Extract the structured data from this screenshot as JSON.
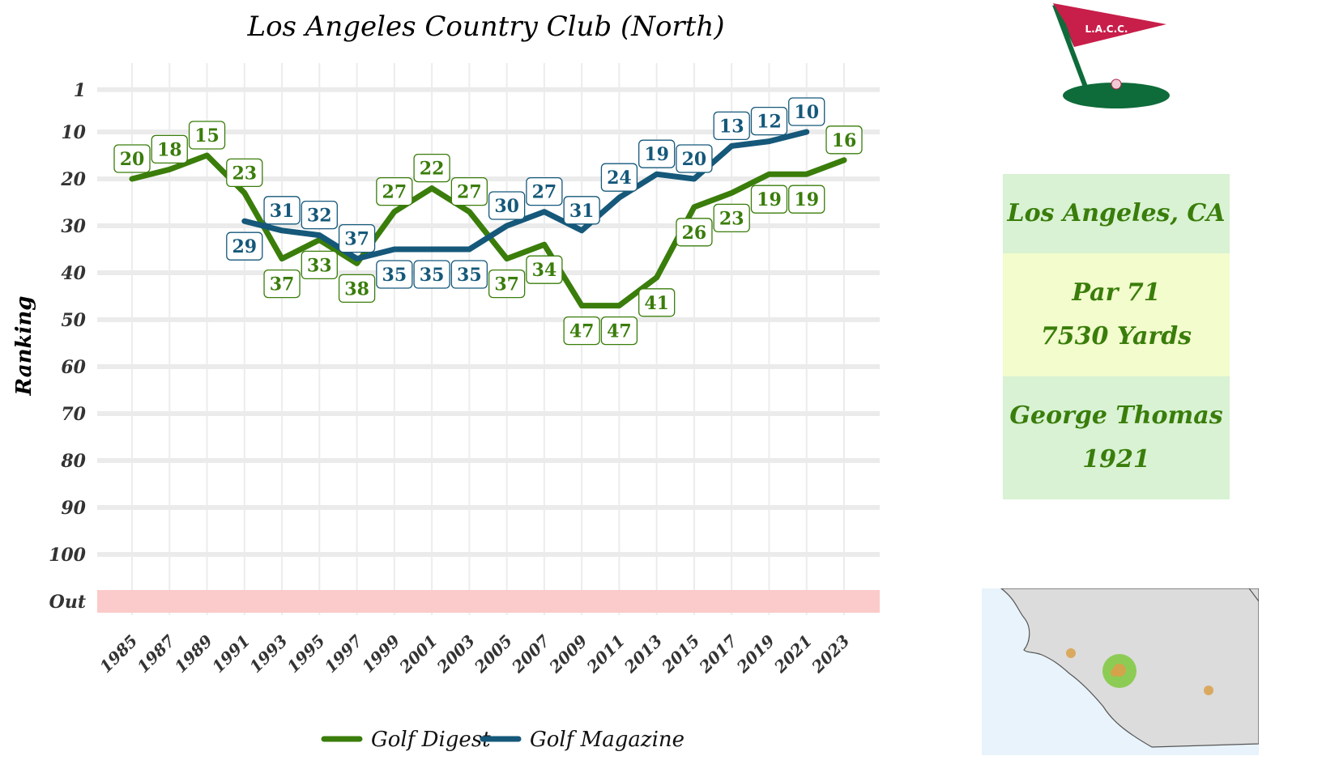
{
  "chart_data": {
    "type": "line",
    "title": "Los Angeles Country Club (North)",
    "xlabel": "",
    "ylabel": "Ranking",
    "x": [
      1985,
      1987,
      1989,
      1991,
      1993,
      1995,
      1997,
      1999,
      2001,
      2003,
      2005,
      2007,
      2009,
      2011,
      2013,
      2015,
      2017,
      2019,
      2021,
      2023
    ],
    "x_tick_labels": [
      "1985",
      "1987",
      "1989",
      "1991",
      "1993",
      "1995",
      "1997",
      "1999",
      "2001",
      "2003",
      "2005",
      "2007",
      "2009",
      "2011",
      "2013",
      "2015",
      "2017",
      "2019",
      "2021",
      "2023"
    ],
    "y_tick_labels": [
      "1",
      "10",
      "20",
      "30",
      "40",
      "50",
      "60",
      "70",
      "80",
      "90",
      "100",
      "Out"
    ],
    "y_tick_values": [
      1,
      10,
      20,
      30,
      40,
      50,
      60,
      70,
      80,
      90,
      100,
      110
    ],
    "ylim": [
      1,
      110
    ],
    "y_reversed": true,
    "grid": true,
    "out_band_color": "#fbcaca",
    "legend_position": "bottom",
    "series": [
      {
        "name": "Golf Digest",
        "color": "#3a7d0b",
        "x": [
          1985,
          1987,
          1989,
          1991,
          1993,
          1995,
          1997,
          1999,
          2001,
          2003,
          2005,
          2007,
          2009,
          2011,
          2013,
          2015,
          2017,
          2019,
          2021,
          2023
        ],
        "values": [
          20,
          18,
          15,
          23,
          37,
          33,
          38,
          27,
          22,
          27,
          37,
          34,
          47,
          47,
          41,
          26,
          23,
          19,
          19,
          16
        ],
        "label_pos": [
          "above",
          "above",
          "above",
          "above",
          "below",
          "below",
          "below",
          "above",
          "above",
          "above",
          "below",
          "below",
          "below",
          "below",
          "below",
          "below",
          "below",
          "below",
          "below",
          "above"
        ]
      },
      {
        "name": "Golf Magazine",
        "color": "#15587a",
        "x": [
          1991,
          1993,
          1995,
          1997,
          1999,
          2001,
          2003,
          2005,
          2007,
          2009,
          2011,
          2013,
          2015,
          2017,
          2019,
          2021
        ],
        "values": [
          29,
          31,
          32,
          37,
          35,
          35,
          35,
          30,
          27,
          31,
          24,
          19,
          20,
          13,
          12,
          10
        ],
        "label_pos": [
          "below",
          "above",
          "above",
          "above",
          "below",
          "below",
          "below",
          "above",
          "above",
          "above",
          "above",
          "above",
          "above",
          "above",
          "above",
          "above"
        ]
      }
    ]
  },
  "info": {
    "location": "Los Angeles, CA",
    "par": "Par 71",
    "yards": "7530 Yards",
    "architect": "George Thomas",
    "year": "1921",
    "colors": {
      "location_bg": "#d8f2d3",
      "course_bg": "#f2fccc",
      "architect_bg": "#d8f2d3",
      "text": "#3a7d0b"
    }
  },
  "logo": {
    "icon": "golf-flag-icon",
    "text": "L.A.C.C.",
    "flag_color": "#c81e4a",
    "green_color": "#0e6b3a"
  },
  "map": {
    "icon": "california-coast-map",
    "land_color": "#dcdcdc",
    "water_color": "#e8f3fb",
    "marker_color": "#d9a04a",
    "highlight_color": "#7fc93c"
  }
}
